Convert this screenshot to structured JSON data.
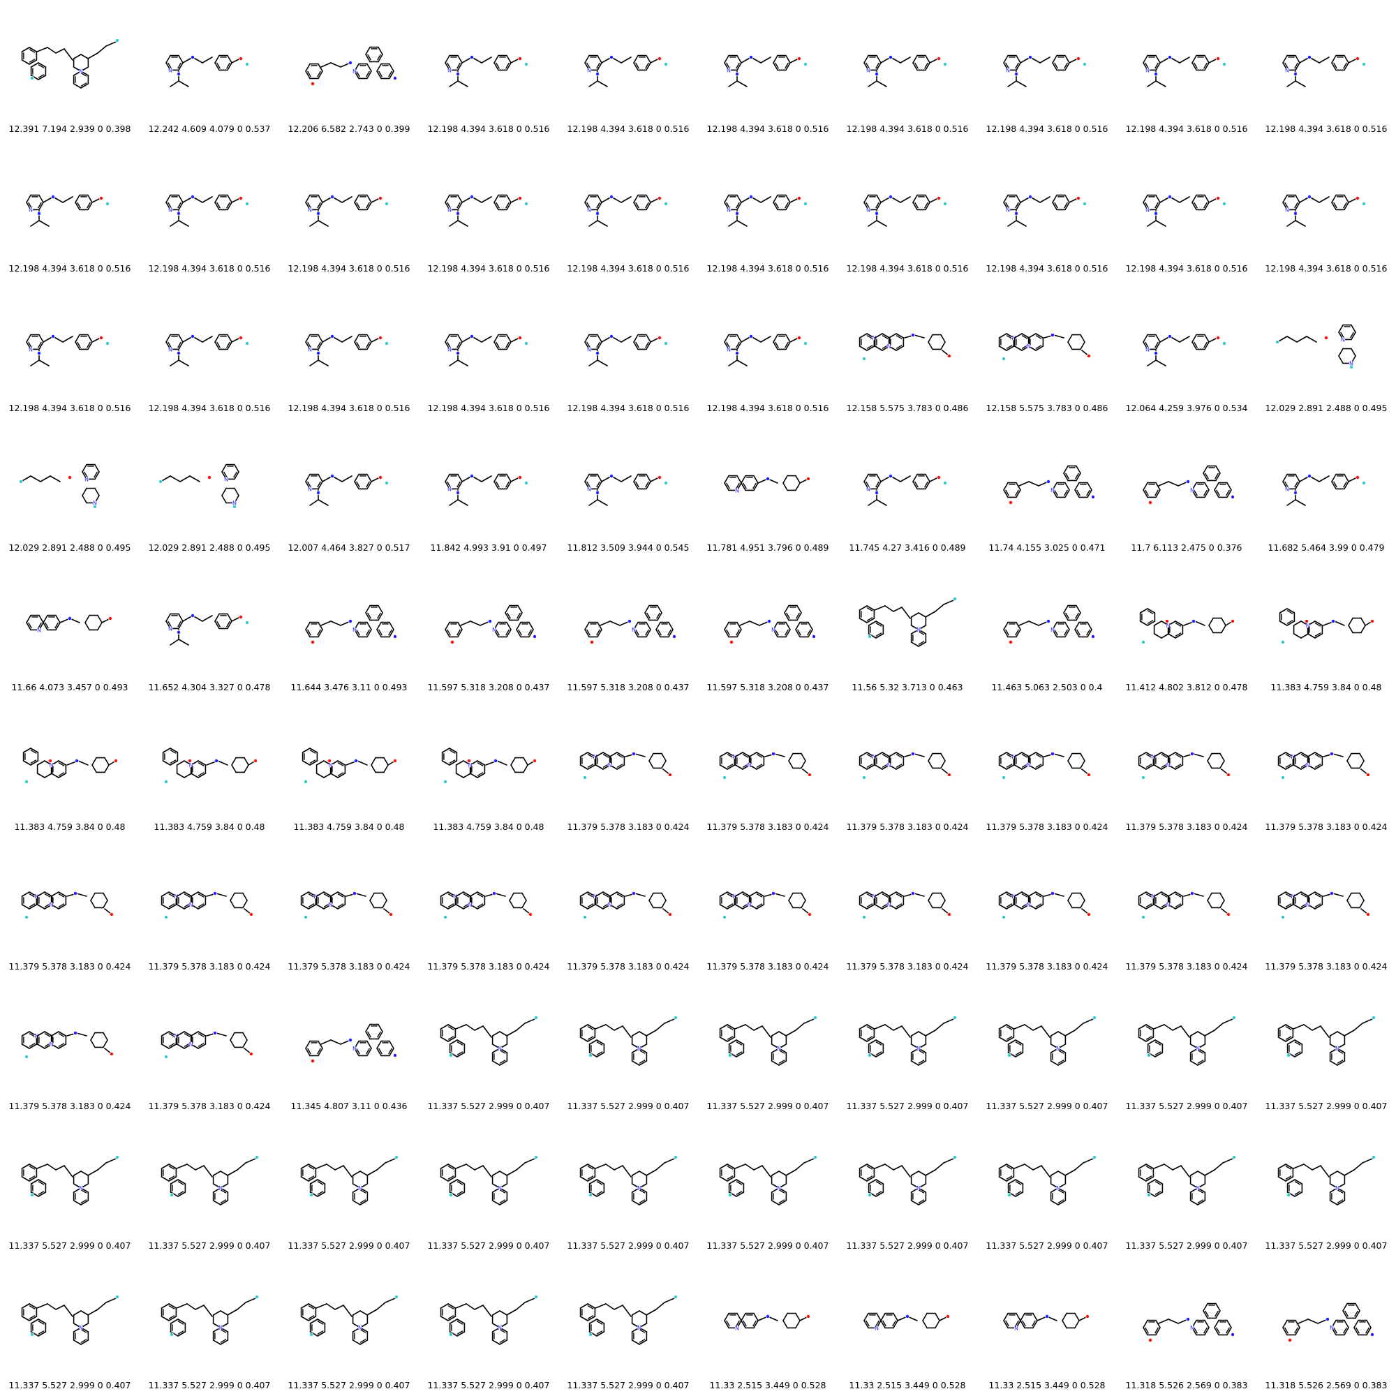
{
  "colors": {
    "background": "#ffffff",
    "bond": "#000000",
    "nitrogen": "#1f1fff",
    "oxygen": "#ff0d0d",
    "fluorine": "#33cccc",
    "sulfur": "#cccc00"
  },
  "structure_kinds": [
    "tetrahydronaphthyridine-styryl",
    "aminopyridine-benzylamine",
    "biphenyl-aminopyridine",
    "naphthyridine-azocyclohexane",
    "chromene-azocyclohexane",
    "urea-piperidine",
    "generic"
  ],
  "molecules": [
    {
      "kind": "tetrahydronaphthyridine-styryl",
      "label": "12.391 7.194 2.939 0 0.398"
    },
    {
      "kind": "aminopyridine-benzylamine",
      "label": "12.242 4.609 4.079 0 0.537"
    },
    {
      "kind": "biphenyl-aminopyridine",
      "label": "12.206 6.582 2.743 0 0.399"
    },
    {
      "kind": "aminopyridine-benzylamine",
      "label": "12.198 4.394 3.618 0 0.516"
    },
    {
      "kind": "aminopyridine-benzylamine",
      "label": "12.198 4.394 3.618 0 0.516"
    },
    {
      "kind": "aminopyridine-benzylamine",
      "label": "12.198 4.394 3.618 0 0.516"
    },
    {
      "kind": "aminopyridine-benzylamine",
      "label": "12.198 4.394 3.618 0 0.516"
    },
    {
      "kind": "aminopyridine-benzylamine",
      "label": "12.198 4.394 3.618 0 0.516"
    },
    {
      "kind": "aminopyridine-benzylamine",
      "label": "12.198 4.394 3.618 0 0.516"
    },
    {
      "kind": "aminopyridine-benzylamine",
      "label": "12.198 4.394 3.618 0 0.516"
    },
    {
      "kind": "aminopyridine-benzylamine",
      "label": "12.198 4.394 3.618 0 0.516"
    },
    {
      "kind": "aminopyridine-benzylamine",
      "label": "12.198 4.394 3.618 0 0.516"
    },
    {
      "kind": "aminopyridine-benzylamine",
      "label": "12.198 4.394 3.618 0 0.516"
    },
    {
      "kind": "aminopyridine-benzylamine",
      "label": "12.198 4.394 3.618 0 0.516"
    },
    {
      "kind": "aminopyridine-benzylamine",
      "label": "12.198 4.394 3.618 0 0.516"
    },
    {
      "kind": "aminopyridine-benzylamine",
      "label": "12.198 4.394 3.618 0 0.516"
    },
    {
      "kind": "aminopyridine-benzylamine",
      "label": "12.198 4.394 3.618 0 0.516"
    },
    {
      "kind": "aminopyridine-benzylamine",
      "label": "12.198 4.394 3.618 0 0.516"
    },
    {
      "kind": "aminopyridine-benzylamine",
      "label": "12.198 4.394 3.618 0 0.516"
    },
    {
      "kind": "aminopyridine-benzylamine",
      "label": "12.198 4.394 3.618 0 0.516"
    },
    {
      "kind": "aminopyridine-benzylamine",
      "label": "12.198 4.394 3.618 0 0.516"
    },
    {
      "kind": "aminopyridine-benzylamine",
      "label": "12.198 4.394 3.618 0 0.516"
    },
    {
      "kind": "aminopyridine-benzylamine",
      "label": "12.198 4.394 3.618 0 0.516"
    },
    {
      "kind": "aminopyridine-benzylamine",
      "label": "12.198 4.394 3.618 0 0.516"
    },
    {
      "kind": "aminopyridine-benzylamine",
      "label": "12.198 4.394 3.618 0 0.516"
    },
    {
      "kind": "aminopyridine-benzylamine",
      "label": "12.198 4.394 3.618 0 0.516"
    },
    {
      "kind": "naphthyridine-azocyclohexane",
      "label": "12.158 5.575 3.783 0 0.486"
    },
    {
      "kind": "naphthyridine-azocyclohexane",
      "label": "12.158 5.575 3.783 0 0.486"
    },
    {
      "kind": "aminopyridine-benzylamine",
      "label": "12.064 4.259 3.976 0 0.534"
    },
    {
      "kind": "urea-piperidine",
      "label": "12.029 2.891 2.488 0 0.495"
    },
    {
      "kind": "urea-piperidine",
      "label": "12.029 2.891 2.488 0 0.495"
    },
    {
      "kind": "urea-piperidine",
      "label": "12.029 2.891 2.488 0 0.495"
    },
    {
      "kind": "aminopyridine-benzylamine",
      "label": "12.007 4.464 3.827 0 0.517"
    },
    {
      "kind": "aminopyridine-benzylamine",
      "label": "11.842 4.993 3.91 0 0.497"
    },
    {
      "kind": "aminopyridine-benzylamine",
      "label": "11.812 3.509 3.944 0 0.545"
    },
    {
      "kind": "generic",
      "label": "11.781 4.951 3.796 0 0.489"
    },
    {
      "kind": "aminopyridine-benzylamine",
      "label": "11.745 4.27 3.416 0 0.489"
    },
    {
      "kind": "biphenyl-aminopyridine",
      "label": "11.74 4.155 3.025 0 0.471"
    },
    {
      "kind": "biphenyl-aminopyridine",
      "label": "11.7 6.113 2.475 0 0.376"
    },
    {
      "kind": "aminopyridine-benzylamine",
      "label": "11.682 5.464 3.99 0 0.479"
    },
    {
      "kind": "generic",
      "label": "11.66 4.073 3.457 0 0.493"
    },
    {
      "kind": "aminopyridine-benzylamine",
      "label": "11.652 4.304 3.327 0 0.478"
    },
    {
      "kind": "biphenyl-aminopyridine",
      "label": "11.644 3.476 3.11 0 0.493"
    },
    {
      "kind": "biphenyl-aminopyridine",
      "label": "11.597 5.318 3.208 0 0.437"
    },
    {
      "kind": "biphenyl-aminopyridine",
      "label": "11.597 5.318 3.208 0 0.437"
    },
    {
      "kind": "biphenyl-aminopyridine",
      "label": "11.597 5.318 3.208 0 0.437"
    },
    {
      "kind": "tetrahydronaphthyridine-styryl",
      "label": "11.56 5.32 3.713 0 0.463"
    },
    {
      "kind": "biphenyl-aminopyridine",
      "label": "11.463 5.063 2.503 0 0.4"
    },
    {
      "kind": "chromene-azocyclohexane",
      "label": "11.412 4.802 3.812 0 0.478"
    },
    {
      "kind": "chromene-azocyclohexane",
      "label": "11.383 4.759 3.84 0 0.48"
    },
    {
      "kind": "chromene-azocyclohexane",
      "label": "11.383 4.759 3.84 0 0.48"
    },
    {
      "kind": "chromene-azocyclohexane",
      "label": "11.383 4.759 3.84 0 0.48"
    },
    {
      "kind": "chromene-azocyclohexane",
      "label": "11.383 4.759 3.84 0 0.48"
    },
    {
      "kind": "chromene-azocyclohexane",
      "label": "11.383 4.759 3.84 0 0.48"
    },
    {
      "kind": "naphthyridine-azocyclohexane",
      "label": "11.379 5.378 3.183 0 0.424"
    },
    {
      "kind": "naphthyridine-azocyclohexane",
      "label": "11.379 5.378 3.183 0 0.424"
    },
    {
      "kind": "naphthyridine-azocyclohexane",
      "label": "11.379 5.378 3.183 0 0.424"
    },
    {
      "kind": "naphthyridine-azocyclohexane",
      "label": "11.379 5.378 3.183 0 0.424"
    },
    {
      "kind": "naphthyridine-azocyclohexane",
      "label": "11.379 5.378 3.183 0 0.424"
    },
    {
      "kind": "naphthyridine-azocyclohexane",
      "label": "11.379 5.378 3.183 0 0.424"
    },
    {
      "kind": "naphthyridine-azocyclohexane",
      "label": "11.379 5.378 3.183 0 0.424"
    },
    {
      "kind": "naphthyridine-azocyclohexane",
      "label": "11.379 5.378 3.183 0 0.424"
    },
    {
      "kind": "naphthyridine-azocyclohexane",
      "label": "11.379 5.378 3.183 0 0.424"
    },
    {
      "kind": "naphthyridine-azocyclohexane",
      "label": "11.379 5.378 3.183 0 0.424"
    },
    {
      "kind": "naphthyridine-azocyclohexane",
      "label": "11.379 5.378 3.183 0 0.424"
    },
    {
      "kind": "naphthyridine-azocyclohexane",
      "label": "11.379 5.378 3.183 0 0.424"
    },
    {
      "kind": "naphthyridine-azocyclohexane",
      "label": "11.379 5.378 3.183 0 0.424"
    },
    {
      "kind": "naphthyridine-azocyclohexane",
      "label": "11.379 5.378 3.183 0 0.424"
    },
    {
      "kind": "naphthyridine-azocyclohexane",
      "label": "11.379 5.378 3.183 0 0.424"
    },
    {
      "kind": "naphthyridine-azocyclohexane",
      "label": "11.379 5.378 3.183 0 0.424"
    },
    {
      "kind": "naphthyridine-azocyclohexane",
      "label": "11.379 5.378 3.183 0 0.424"
    },
    {
      "kind": "naphthyridine-azocyclohexane",
      "label": "11.379 5.378 3.183 0 0.424"
    },
    {
      "kind": "biphenyl-aminopyridine",
      "label": "11.345 4.807 3.11 0 0.436"
    },
    {
      "kind": "tetrahydronaphthyridine-styryl",
      "label": "11.337 5.527 2.999 0 0.407"
    },
    {
      "kind": "tetrahydronaphthyridine-styryl",
      "label": "11.337 5.527 2.999 0 0.407"
    },
    {
      "kind": "tetrahydronaphthyridine-styryl",
      "label": "11.337 5.527 2.999 0 0.407"
    },
    {
      "kind": "tetrahydronaphthyridine-styryl",
      "label": "11.337 5.527 2.999 0 0.407"
    },
    {
      "kind": "tetrahydronaphthyridine-styryl",
      "label": "11.337 5.527 2.999 0 0.407"
    },
    {
      "kind": "tetrahydronaphthyridine-styryl",
      "label": "11.337 5.527 2.999 0 0.407"
    },
    {
      "kind": "tetrahydronaphthyridine-styryl",
      "label": "11.337 5.527 2.999 0 0.407"
    },
    {
      "kind": "tetrahydronaphthyridine-styryl",
      "label": "11.337 5.527 2.999 0 0.407"
    },
    {
      "kind": "tetrahydronaphthyridine-styryl",
      "label": "11.337 5.527 2.999 0 0.407"
    },
    {
      "kind": "tetrahydronaphthyridine-styryl",
      "label": "11.337 5.527 2.999 0 0.407"
    },
    {
      "kind": "tetrahydronaphthyridine-styryl",
      "label": "11.337 5.527 2.999 0 0.407"
    },
    {
      "kind": "tetrahydronaphthyridine-styryl",
      "label": "11.337 5.527 2.999 0 0.407"
    },
    {
      "kind": "tetrahydronaphthyridine-styryl",
      "label": "11.337 5.527 2.999 0 0.407"
    },
    {
      "kind": "tetrahydronaphthyridine-styryl",
      "label": "11.337 5.527 2.999 0 0.407"
    },
    {
      "kind": "tetrahydronaphthyridine-styryl",
      "label": "11.337 5.527 2.999 0 0.407"
    },
    {
      "kind": "tetrahydronaphthyridine-styryl",
      "label": "11.337 5.527 2.999 0 0.407"
    },
    {
      "kind": "tetrahydronaphthyridine-styryl",
      "label": "11.337 5.527 2.999 0 0.407"
    },
    {
      "kind": "tetrahydronaphthyridine-styryl",
      "label": "11.337 5.527 2.999 0 0.407"
    },
    {
      "kind": "tetrahydronaphthyridine-styryl",
      "label": "11.337 5.527 2.999 0 0.407"
    },
    {
      "kind": "tetrahydronaphthyridine-styryl",
      "label": "11.337 5.527 2.999 0 0.407"
    },
    {
      "kind": "tetrahydronaphthyridine-styryl",
      "label": "11.337 5.527 2.999 0 0.407"
    },
    {
      "kind": "tetrahydronaphthyridine-styryl",
      "label": "11.337 5.527 2.999 0 0.407"
    },
    {
      "kind": "generic",
      "label": "11.33 2.515 3.449 0 0.528"
    },
    {
      "kind": "generic",
      "label": "11.33 2.515 3.449 0 0.528"
    },
    {
      "kind": "generic",
      "label": "11.33 2.515 3.449 0 0.528"
    },
    {
      "kind": "biphenyl-aminopyridine",
      "label": "11.318 5.526 2.569 0 0.383"
    },
    {
      "kind": "biphenyl-aminopyridine",
      "label": "11.318 5.526 2.569 0 0.383"
    }
  ]
}
